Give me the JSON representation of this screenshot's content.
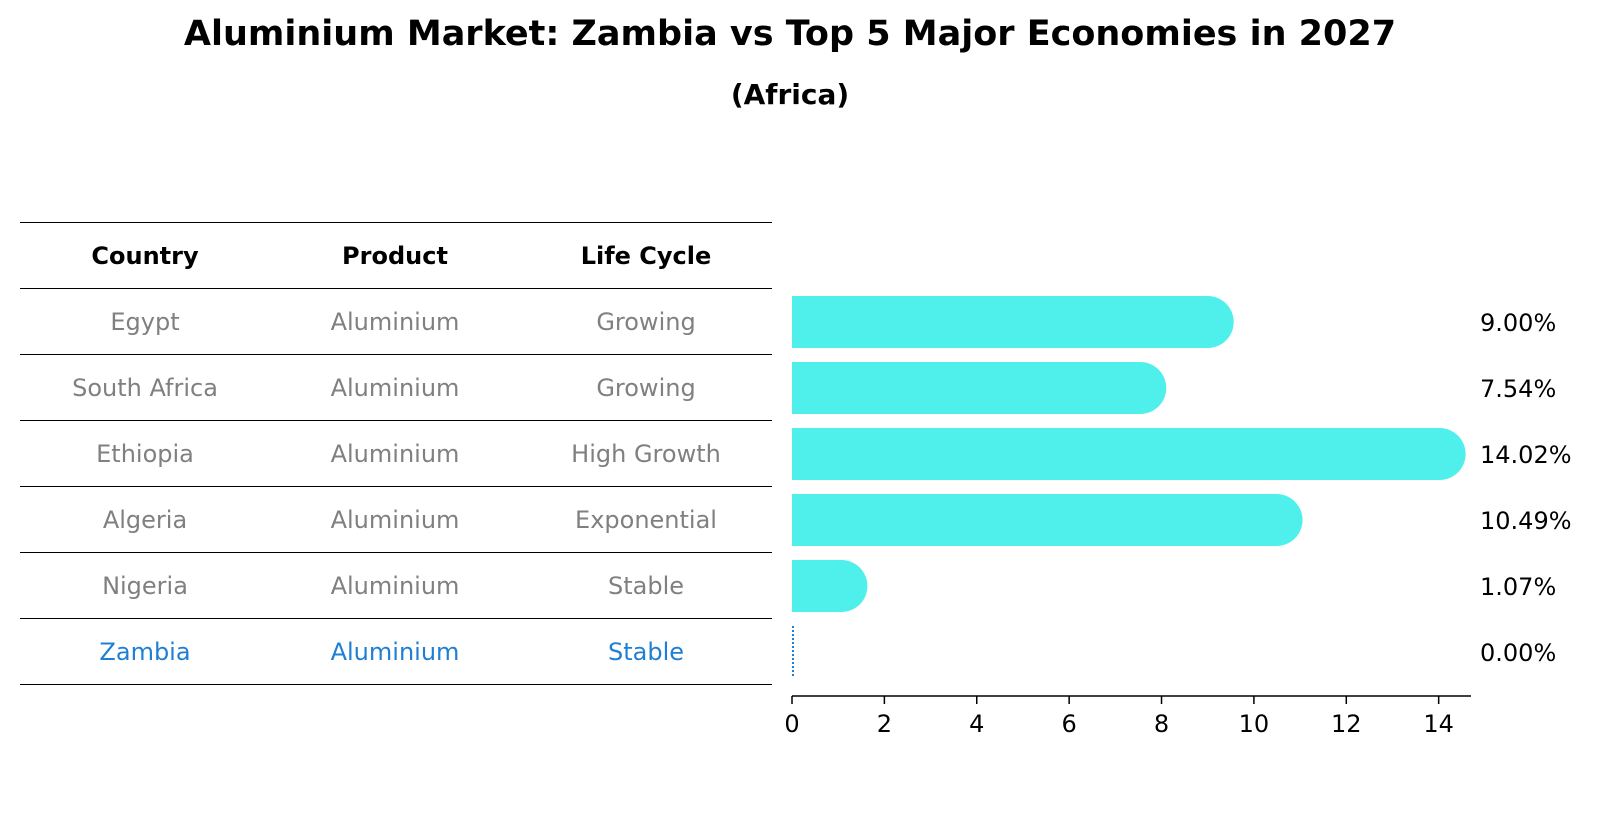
{
  "title": "Aluminium Market: Zambia vs Top 5 Major Economies in 2027",
  "subtitle": "(Africa)",
  "table": {
    "headers": [
      "Country",
      "Product",
      "Life Cycle"
    ],
    "rows": [
      {
        "country": "Egypt",
        "product": "Aluminium",
        "life_cycle": "Growing"
      },
      {
        "country": "South Africa",
        "product": "Aluminium",
        "life_cycle": "Growing"
      },
      {
        "country": "Ethiopia",
        "product": "Aluminium",
        "life_cycle": "High Growth"
      },
      {
        "country": "Algeria",
        "product": "Aluminium",
        "life_cycle": "Exponential"
      },
      {
        "country": "Nigeria",
        "product": "Aluminium",
        "life_cycle": "Stable"
      },
      {
        "country": "Zambia",
        "product": "Aluminium",
        "life_cycle": "Stable"
      }
    ],
    "highlight_color": "#1f7fd4",
    "text_color": "#808080"
  },
  "chart_data": {
    "type": "bar",
    "orientation": "horizontal",
    "categories": [
      "Egypt",
      "South Africa",
      "Ethiopia",
      "Algeria",
      "Nigeria",
      "Zambia"
    ],
    "values": [
      9.0,
      7.54,
      14.02,
      10.49,
      1.07,
      0.0
    ],
    "data_labels": [
      "9.00%",
      "7.54%",
      "14.02%",
      "10.49%",
      "1.07%",
      "0.00%"
    ],
    "xlim": [
      0,
      14.7
    ],
    "xticks": [
      0,
      2,
      4,
      6,
      8,
      10,
      12,
      14
    ],
    "bar_color": "#4ff0ec",
    "zero_marker_color": "#1f7fd4",
    "grid": false
  }
}
